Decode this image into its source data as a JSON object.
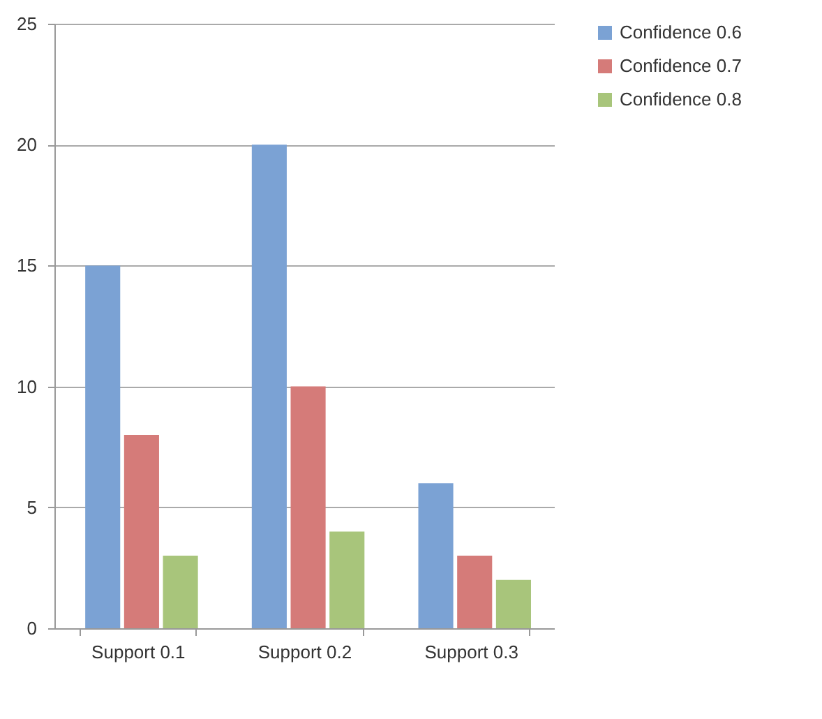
{
  "chart_data": {
    "type": "bar",
    "categories": [
      "Support 0.1",
      "Support 0.2",
      "Support 0.3"
    ],
    "series": [
      {
        "name": "Confidence 0.6",
        "color": "#7ba2d4",
        "values": [
          15,
          20,
          6
        ]
      },
      {
        "name": "Confidence 0.7",
        "color": "#d57b79",
        "values": [
          8,
          10,
          3
        ]
      },
      {
        "name": "Confidence 0.8",
        "color": "#a8c57b",
        "values": [
          3,
          4,
          2
        ]
      }
    ],
    "ylim": [
      0,
      25
    ],
    "yticks": [
      0,
      5,
      10,
      15,
      20,
      25
    ],
    "grid": "y",
    "legend": "right"
  }
}
